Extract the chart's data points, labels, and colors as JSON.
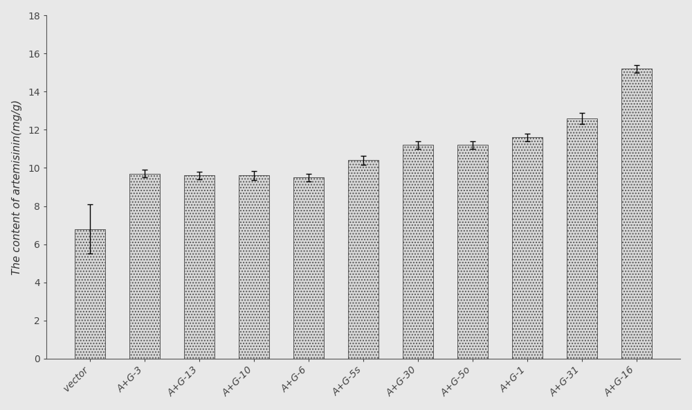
{
  "categories": [
    "vector",
    "A+G-3",
    "A+G-13",
    "A+G-10",
    "A+G-6",
    "A+G-5s",
    "A+G-30",
    "A+G-5o",
    "A+G-1",
    "A+G-31",
    "A+G-16"
  ],
  "values": [
    6.8,
    9.7,
    9.6,
    9.6,
    9.5,
    10.4,
    11.2,
    11.2,
    11.6,
    12.6,
    15.2
  ],
  "errors": [
    1.3,
    0.2,
    0.2,
    0.25,
    0.2,
    0.25,
    0.2,
    0.2,
    0.2,
    0.3,
    0.2
  ],
  "bar_color": "#d8d8d8",
  "bar_edgecolor": "#555555",
  "bar_hatch": "....",
  "ylabel": "The content of artemisinin(mg/g)",
  "ylim": [
    0,
    18
  ],
  "yticks": [
    0,
    2,
    4,
    6,
    8,
    10,
    12,
    14,
    16,
    18
  ],
  "background_color": "#e8e8e8",
  "plot_bg_color": "#e8e8e8",
  "ylabel_fontsize": 11,
  "tick_fontsize": 10,
  "xlabel_rotation": 45,
  "bar_width": 0.55
}
